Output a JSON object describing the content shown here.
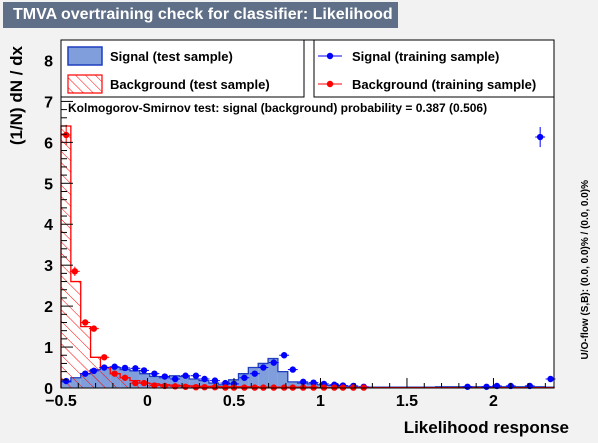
{
  "title": "TMVA overtraining check for classifier: Likelihood",
  "chart_data": {
    "type": "histogram",
    "xlabel": "Likelihood response",
    "ylabel": "(1/N) dN / dx",
    "xlim": [
      -0.5,
      2.35
    ],
    "ylim": [
      0,
      8.5
    ],
    "bin_width": 0.057,
    "x_ticks": [
      -0.5,
      0,
      0.5,
      1,
      1.5,
      2
    ],
    "x_tick_labels": [
      "−0.5",
      "0",
      "0.5",
      "1",
      "1.5",
      "2"
    ],
    "y_ticks": [
      0,
      1,
      2,
      3,
      4,
      5,
      6,
      7,
      8
    ],
    "y_tick_labels": [
      "0",
      "1",
      "2",
      "3",
      "4",
      "5",
      "6",
      "7",
      "8"
    ],
    "colors": {
      "signal_fill": "#7f9edb",
      "signal_line": "#1f3fbf",
      "signal_points": "#0000ff",
      "background_line": "#ff0000",
      "background_points": "#ff0000"
    },
    "series": [
      {
        "name": "Signal (test sample)",
        "style": "filled-histogram",
        "values": [
          0.15,
          0.25,
          0.35,
          0.45,
          0.5,
          0.5,
          0.45,
          0.42,
          0.35,
          0.28,
          0.25,
          0.3,
          0.28,
          0.22,
          0.18,
          0.12,
          0.08,
          0.2,
          0.35,
          0.5,
          0.6,
          0.72,
          0.4,
          0.15,
          0.12,
          0.1,
          0.08,
          0.06,
          0.04,
          0.03,
          0.02,
          0.02,
          0.02,
          0.02,
          0.02,
          0.02,
          0.02,
          0.02,
          0.03,
          0.03,
          0.03,
          0.03,
          0.03,
          0.03,
          0.03,
          0.03,
          0.03,
          0.03,
          0.03,
          0.02,
          0.02,
          0.02,
          0.02,
          0.02,
          0.02,
          0.02,
          0.02,
          0.02,
          0.02,
          0.02,
          0.02,
          0.02,
          0.02,
          0.02,
          0.02,
          0.02,
          0.02,
          0.02,
          0.02,
          0.02,
          0.02,
          0.02,
          0.02,
          0.02,
          0.02,
          0.02,
          0.02,
          0.02,
          0.02,
          0.02,
          0.02,
          0.02,
          0.02,
          0.02,
          0.02,
          0.02,
          0.02,
          0.02,
          0.02,
          0.02,
          0.03,
          0.04,
          0.05,
          0.04,
          0.05,
          0.04,
          0.05,
          0.04,
          0.05,
          0.04,
          0.05,
          0.04,
          5.9,
          0.2
        ]
      },
      {
        "name": "Background (test sample)",
        "style": "hatched-histogram",
        "values": [
          6.4,
          2.6,
          1.5,
          0.75,
          0.5,
          0.35,
          0.25,
          0.18,
          0.12,
          0.1,
          0.08,
          0.07,
          0.06,
          0.05,
          0.04,
          0.04,
          0.03,
          0.03,
          0.03,
          0.03,
          0.02,
          0.02,
          0.02,
          0.02,
          0.02,
          0.02,
          0.01,
          0.01,
          0.01,
          0.01,
          0.01,
          0.01,
          0.01,
          0.01,
          0.01,
          0.01,
          0.01,
          0.01,
          0.01,
          0.01,
          0.01,
          0.01,
          0.01,
          0.01,
          0.01,
          0.01,
          0.01,
          0.01,
          0.01,
          0.01,
          0.01,
          0.01,
          0.01,
          0.01,
          0.01,
          0.01,
          0.01,
          0.01,
          0.01,
          0.01,
          0.01,
          0.01,
          0.01,
          0.01,
          0.01,
          0.01,
          0.01,
          0.01,
          0.01,
          0.01,
          0.01,
          0.01,
          0.01,
          0.01,
          0.01,
          0.01,
          0.01,
          0.01,
          0.01,
          0.01,
          0.01,
          0.01,
          0.01,
          0.01,
          0.01,
          0.01,
          0.01,
          0.01,
          0.01,
          0.01,
          0.01,
          0.01,
          0.01,
          0.01,
          0.01,
          0.01,
          0.01,
          0.01,
          0.01,
          0.01,
          0.01,
          0.01,
          0.01,
          0.01
        ]
      },
      {
        "name": "Signal (training sample)",
        "style": "points",
        "points": [
          [
            -0.47,
            0.17
          ],
          [
            -0.36,
            0.35
          ],
          [
            -0.31,
            0.42
          ],
          [
            -0.25,
            0.5
          ],
          [
            -0.19,
            0.52
          ],
          [
            -0.13,
            0.49
          ],
          [
            -0.07,
            0.48
          ],
          [
            -0.02,
            0.43
          ],
          [
            0.04,
            0.35
          ],
          [
            0.1,
            0.28
          ],
          [
            0.16,
            0.22
          ],
          [
            0.22,
            0.3
          ],
          [
            0.28,
            0.3
          ],
          [
            0.33,
            0.22
          ],
          [
            0.39,
            0.18
          ],
          [
            0.45,
            0.12
          ],
          [
            0.5,
            0.1
          ],
          [
            0.56,
            0.25
          ],
          [
            0.62,
            0.35
          ],
          [
            0.67,
            0.5
          ],
          [
            0.73,
            0.62
          ],
          [
            0.79,
            0.8
          ],
          [
            0.84,
            0.45
          ],
          [
            0.9,
            0.15
          ],
          [
            0.96,
            0.13
          ],
          [
            1.02,
            0.1
          ],
          [
            1.08,
            0.08
          ],
          [
            1.13,
            0.06
          ],
          [
            1.19,
            0.05
          ],
          [
            1.25,
            0.03
          ],
          [
            1.85,
            0.03
          ],
          [
            1.96,
            0.03
          ],
          [
            2.02,
            0.05
          ],
          [
            2.1,
            0.05
          ],
          [
            2.21,
            0.05
          ],
          [
            2.27,
            6.13
          ],
          [
            2.33,
            0.22
          ]
        ]
      },
      {
        "name": "Background (training sample)",
        "style": "points",
        "points": [
          [
            -0.47,
            6.18
          ],
          [
            -0.42,
            2.85
          ],
          [
            -0.36,
            1.6
          ],
          [
            -0.31,
            1.45
          ],
          [
            -0.25,
            0.75
          ],
          [
            -0.19,
            0.35
          ],
          [
            -0.13,
            0.25
          ],
          [
            -0.07,
            0.12
          ],
          [
            -0.02,
            0.12
          ],
          [
            0.04,
            0.06
          ],
          [
            0.1,
            0.05
          ],
          [
            0.16,
            0.04
          ],
          [
            0.22,
            0.03
          ],
          [
            0.28,
            0.02
          ],
          [
            0.33,
            0.02
          ],
          [
            0.39,
            0.02
          ],
          [
            0.45,
            0.01
          ],
          [
            0.5,
            0.01
          ],
          [
            0.56,
            0.01
          ],
          [
            0.62,
            0.01
          ],
          [
            0.67,
            0.01
          ],
          [
            0.73,
            0.01
          ],
          [
            0.79,
            0.01
          ],
          [
            0.84,
            0.01
          ],
          [
            0.9,
            0.01
          ],
          [
            0.96,
            0.01
          ],
          [
            1.02,
            0.01
          ],
          [
            1.08,
            0.01
          ],
          [
            1.13,
            0.01
          ],
          [
            1.19,
            0.01
          ],
          [
            1.25,
            0.01
          ]
        ]
      }
    ],
    "legend": {
      "placement": "top",
      "entries": [
        {
          "label": "Signal (test sample)",
          "marker": "filled-box"
        },
        {
          "label": "Signal (training sample)",
          "marker": "blue-point"
        },
        {
          "label": "Background (test sample)",
          "marker": "hatched-box"
        },
        {
          "label": "Background (training sample)",
          "marker": "red-point"
        }
      ]
    },
    "annotation": "Kolmogorov-Smirnov test: signal (background) probability = 0.387 (0.506)",
    "side_label": "U/O-flow (S,B): (0.0, 0.0)% / (0.0, 0.0)%"
  }
}
